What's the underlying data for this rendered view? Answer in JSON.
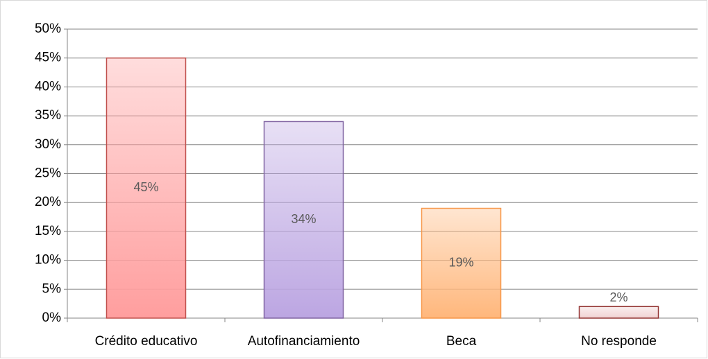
{
  "chart_data": {
    "type": "bar",
    "categories": [
      "Crédito educativo",
      "Autofinanciamiento",
      "Beca",
      "No responde"
    ],
    "values": [
      45,
      34,
      19,
      2
    ],
    "value_labels": [
      "45%",
      "34%",
      "19%",
      "2%"
    ],
    "colors": [
      "#ff9e9e",
      "#bca6e2",
      "#ffb77c",
      "#f0d2d2"
    ],
    "border_colors": [
      "#c0504d",
      "#8064a2",
      "#f79646",
      "#943634"
    ],
    "ylim": [
      0,
      50
    ],
    "yticks": [
      {
        "value": 0,
        "label": "0%"
      },
      {
        "value": 5,
        "label": "5%"
      },
      {
        "value": 10,
        "label": "10%"
      },
      {
        "value": 15,
        "label": "15%"
      },
      {
        "value": 20,
        "label": "20%"
      },
      {
        "value": 25,
        "label": "25%"
      },
      {
        "value": 30,
        "label": "30%"
      },
      {
        "value": 35,
        "label": "35%"
      },
      {
        "value": 40,
        "label": "40%"
      },
      {
        "value": 45,
        "label": "45%"
      },
      {
        "value": 50,
        "label": "50%"
      }
    ],
    "grid": true
  }
}
